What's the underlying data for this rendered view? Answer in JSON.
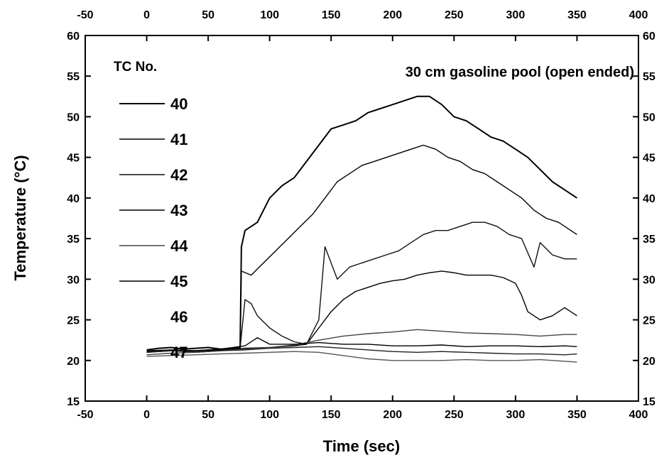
{
  "chart_data": {
    "type": "line",
    "title": "",
    "xlabel": "Time (sec)",
    "ylabel": "Temperature (°C)",
    "xlim": [
      -50,
      400
    ],
    "ylim": [
      15,
      60
    ],
    "x_ticks": [
      "-50",
      "0",
      "50",
      "100",
      "150",
      "200",
      "250",
      "300",
      "350",
      "400"
    ],
    "y_ticks": [
      "15",
      "20",
      "25",
      "30",
      "35",
      "40",
      "45",
      "50",
      "55",
      "60"
    ],
    "grid": false,
    "annotation": "30 cm gasoline pool (open ended)",
    "legend": {
      "title": "TC No.",
      "placement": "top-left",
      "entries": [
        "40",
        "41",
        "42",
        "43",
        "44",
        "45",
        "46",
        "47"
      ]
    },
    "series": [
      {
        "name": "40",
        "color": "#000000",
        "points": [
          [
            0,
            21.3
          ],
          [
            10,
            21.5
          ],
          [
            20,
            21.6
          ],
          [
            30,
            21.4
          ],
          [
            40,
            21.5
          ],
          [
            50,
            21.6
          ],
          [
            60,
            21.4
          ],
          [
            70,
            21.5
          ],
          [
            76,
            21.6
          ],
          [
            77,
            34.0
          ],
          [
            80,
            36.0
          ],
          [
            90,
            37.0
          ],
          [
            100,
            40.0
          ],
          [
            110,
            41.5
          ],
          [
            120,
            42.5
          ],
          [
            130,
            44.5
          ],
          [
            140,
            46.5
          ],
          [
            150,
            48.5
          ],
          [
            160,
            49.0
          ],
          [
            170,
            49.5
          ],
          [
            180,
            50.5
          ],
          [
            190,
            51.0
          ],
          [
            200,
            51.5
          ],
          [
            210,
            52.0
          ],
          [
            220,
            52.5
          ],
          [
            230,
            52.5
          ],
          [
            240,
            51.5
          ],
          [
            250,
            50.0
          ],
          [
            260,
            49.5
          ],
          [
            270,
            48.5
          ],
          [
            280,
            47.5
          ],
          [
            290,
            47.0
          ],
          [
            300,
            46.0
          ],
          [
            310,
            45.0
          ],
          [
            320,
            43.5
          ],
          [
            330,
            42.0
          ],
          [
            340,
            41.0
          ],
          [
            350,
            40.0
          ]
        ]
      },
      {
        "name": "41",
        "color": "#000000",
        "points": [
          [
            0,
            21.0
          ],
          [
            20,
            21.2
          ],
          [
            40,
            21.1
          ],
          [
            60,
            21.3
          ],
          [
            76,
            21.4
          ],
          [
            77,
            31.0
          ],
          [
            85,
            30.5
          ],
          [
            95,
            32.0
          ],
          [
            105,
            33.5
          ],
          [
            115,
            35.0
          ],
          [
            125,
            36.5
          ],
          [
            135,
            38.0
          ],
          [
            145,
            40.0
          ],
          [
            155,
            42.0
          ],
          [
            165,
            43.0
          ],
          [
            175,
            44.0
          ],
          [
            185,
            44.5
          ],
          [
            195,
            45.0
          ],
          [
            205,
            45.5
          ],
          [
            215,
            46.0
          ],
          [
            225,
            46.5
          ],
          [
            235,
            46.0
          ],
          [
            245,
            45.0
          ],
          [
            255,
            44.5
          ],
          [
            265,
            43.5
          ],
          [
            275,
            43.0
          ],
          [
            285,
            42.0
          ],
          [
            295,
            41.0
          ],
          [
            305,
            40.0
          ],
          [
            315,
            38.5
          ],
          [
            325,
            37.5
          ],
          [
            335,
            37.0
          ],
          [
            345,
            36.0
          ],
          [
            350,
            35.5
          ]
        ]
      },
      {
        "name": "42",
        "color": "#111111",
        "points": [
          [
            0,
            21.2
          ],
          [
            20,
            21.3
          ],
          [
            40,
            21.2
          ],
          [
            60,
            21.4
          ],
          [
            76,
            21.5
          ],
          [
            80,
            27.5
          ],
          [
            85,
            27.0
          ],
          [
            90,
            25.5
          ],
          [
            100,
            24.0
          ],
          [
            110,
            23.0
          ],
          [
            120,
            22.3
          ],
          [
            130,
            22.0
          ],
          [
            140,
            25.0
          ],
          [
            145,
            34.0
          ],
          [
            155,
            30.0
          ],
          [
            165,
            31.5
          ],
          [
            175,
            32.0
          ],
          [
            185,
            32.5
          ],
          [
            195,
            33.0
          ],
          [
            205,
            33.5
          ],
          [
            215,
            34.5
          ],
          [
            225,
            35.5
          ],
          [
            235,
            36.0
          ],
          [
            245,
            36.0
          ],
          [
            255,
            36.5
          ],
          [
            265,
            37.0
          ],
          [
            275,
            37.0
          ],
          [
            285,
            36.5
          ],
          [
            295,
            35.5
          ],
          [
            305,
            35.0
          ],
          [
            315,
            31.5
          ],
          [
            320,
            34.5
          ],
          [
            330,
            33.0
          ],
          [
            340,
            32.5
          ],
          [
            350,
            32.5
          ]
        ]
      },
      {
        "name": "43",
        "color": "#000000",
        "points": [
          [
            0,
            21.0
          ],
          [
            20,
            21.2
          ],
          [
            40,
            21.0
          ],
          [
            60,
            21.2
          ],
          [
            80,
            21.5
          ],
          [
            100,
            21.6
          ],
          [
            120,
            21.8
          ],
          [
            130,
            22.0
          ],
          [
            140,
            24.0
          ],
          [
            150,
            26.0
          ],
          [
            160,
            27.5
          ],
          [
            170,
            28.5
          ],
          [
            180,
            29.0
          ],
          [
            190,
            29.5
          ],
          [
            200,
            29.8
          ],
          [
            210,
            30.0
          ],
          [
            220,
            30.5
          ],
          [
            230,
            30.8
          ],
          [
            240,
            31.0
          ],
          [
            250,
            30.8
          ],
          [
            260,
            30.5
          ],
          [
            270,
            30.5
          ],
          [
            280,
            30.5
          ],
          [
            290,
            30.2
          ],
          [
            300,
            29.5
          ],
          [
            305,
            28.0
          ],
          [
            310,
            26.0
          ],
          [
            320,
            25.0
          ],
          [
            330,
            25.5
          ],
          [
            340,
            26.5
          ],
          [
            350,
            25.5
          ]
        ]
      },
      {
        "name": "44",
        "color": "#444444",
        "points": [
          [
            0,
            20.7
          ],
          [
            20,
            20.9
          ],
          [
            40,
            21.0
          ],
          [
            60,
            21.2
          ],
          [
            80,
            21.4
          ],
          [
            100,
            21.6
          ],
          [
            120,
            21.9
          ],
          [
            140,
            22.5
          ],
          [
            160,
            23.0
          ],
          [
            180,
            23.3
          ],
          [
            200,
            23.5
          ],
          [
            220,
            23.8
          ],
          [
            240,
            23.6
          ],
          [
            260,
            23.4
          ],
          [
            280,
            23.3
          ],
          [
            300,
            23.2
          ],
          [
            320,
            23.0
          ],
          [
            340,
            23.2
          ],
          [
            350,
            23.2
          ]
        ]
      },
      {
        "name": "45",
        "color": "#000000",
        "points": [
          [
            0,
            21.1
          ],
          [
            20,
            21.3
          ],
          [
            40,
            21.2
          ],
          [
            60,
            21.4
          ],
          [
            80,
            21.8
          ],
          [
            90,
            22.8
          ],
          [
            100,
            22.0
          ],
          [
            120,
            22.0
          ],
          [
            140,
            22.2
          ],
          [
            160,
            22.0
          ],
          [
            180,
            22.0
          ],
          [
            200,
            21.8
          ],
          [
            220,
            21.8
          ],
          [
            240,
            21.9
          ],
          [
            260,
            21.7
          ],
          [
            280,
            21.8
          ],
          [
            300,
            21.8
          ],
          [
            320,
            21.7
          ],
          [
            340,
            21.8
          ],
          [
            350,
            21.7
          ]
        ]
      },
      {
        "name": "46",
        "color": "#222222",
        "points": [
          [
            0,
            21.0
          ],
          [
            20,
            21.2
          ],
          [
            40,
            21.1
          ],
          [
            60,
            21.2
          ],
          [
            80,
            21.3
          ],
          [
            100,
            21.5
          ],
          [
            120,
            21.6
          ],
          [
            140,
            21.7
          ],
          [
            160,
            21.5
          ],
          [
            180,
            21.3
          ],
          [
            200,
            21.1
          ],
          [
            220,
            21.0
          ],
          [
            240,
            21.1
          ],
          [
            260,
            21.0
          ],
          [
            280,
            20.9
          ],
          [
            300,
            20.8
          ],
          [
            320,
            20.8
          ],
          [
            340,
            20.7
          ],
          [
            350,
            20.8
          ]
        ]
      },
      {
        "name": "47",
        "color": "#555555",
        "points": [
          [
            0,
            20.5
          ],
          [
            20,
            20.6
          ],
          [
            40,
            20.7
          ],
          [
            60,
            20.8
          ],
          [
            80,
            20.9
          ],
          [
            100,
            21.0
          ],
          [
            120,
            21.1
          ],
          [
            140,
            21.0
          ],
          [
            160,
            20.6
          ],
          [
            180,
            20.2
          ],
          [
            200,
            20.0
          ],
          [
            220,
            20.0
          ],
          [
            240,
            20.0
          ],
          [
            260,
            20.1
          ],
          [
            280,
            20.0
          ],
          [
            300,
            20.0
          ],
          [
            320,
            20.1
          ],
          [
            340,
            19.9
          ],
          [
            350,
            19.8
          ]
        ]
      }
    ]
  }
}
